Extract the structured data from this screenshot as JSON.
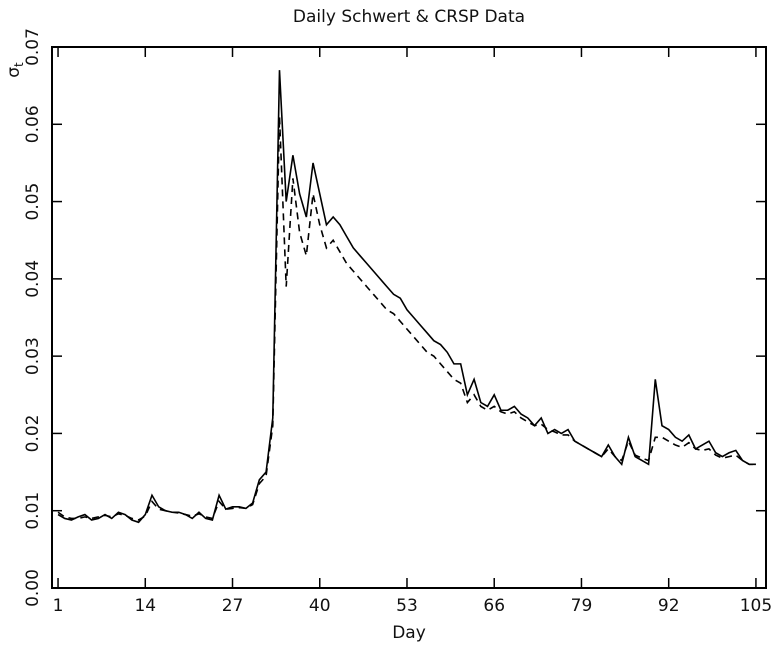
{
  "chart_data": {
    "type": "line",
    "title": "Daily Schwert & CRSP Data",
    "xlabel": "Day",
    "ylabel": "σ",
    "ylabel_subscript": "t",
    "x": [
      1,
      2,
      3,
      4,
      5,
      6,
      7,
      8,
      9,
      10,
      11,
      12,
      13,
      14,
      15,
      16,
      17,
      18,
      19,
      20,
      21,
      22,
      23,
      24,
      25,
      26,
      27,
      28,
      29,
      30,
      31,
      32,
      33,
      34,
      35,
      36,
      37,
      38,
      39,
      40,
      41,
      42,
      43,
      44,
      45,
      46,
      47,
      48,
      49,
      50,
      51,
      52,
      53,
      54,
      55,
      56,
      57,
      58,
      59,
      60,
      61,
      62,
      63,
      64,
      65,
      66,
      67,
      68,
      69,
      70,
      71,
      72,
      73,
      74,
      75,
      76,
      77,
      78,
      79,
      80,
      81,
      82,
      83,
      84,
      85,
      86,
      87,
      88,
      89,
      90,
      91,
      92,
      93,
      94,
      95,
      96,
      97,
      98,
      99,
      100,
      101,
      102,
      103,
      104,
      105
    ],
    "series": [
      {
        "color": "#000000",
        "style": "solid",
        "values": [
          0.0095,
          0.009,
          0.0088,
          0.0092,
          0.0095,
          0.0088,
          0.009,
          0.0095,
          0.009,
          0.0098,
          0.0095,
          0.0088,
          0.0085,
          0.0095,
          0.012,
          0.0105,
          0.01,
          0.0098,
          0.0098,
          0.0095,
          0.009,
          0.0098,
          0.009,
          0.0088,
          0.012,
          0.0102,
          0.0105,
          0.0105,
          0.0103,
          0.011,
          0.014,
          0.015,
          0.022,
          0.067,
          0.05,
          0.056,
          0.051,
          0.048,
          0.055,
          0.051,
          0.047,
          0.048,
          0.047,
          0.0455,
          0.044,
          0.043,
          0.042,
          0.041,
          0.04,
          0.039,
          0.038,
          0.0375,
          0.036,
          0.035,
          0.034,
          0.033,
          0.032,
          0.0315,
          0.0305,
          0.029,
          0.029,
          0.025,
          0.027,
          0.024,
          0.0235,
          0.025,
          0.023,
          0.023,
          0.0235,
          0.0225,
          0.022,
          0.021,
          0.022,
          0.02,
          0.0205,
          0.02,
          0.0205,
          0.019,
          0.0185,
          0.018,
          0.0175,
          0.017,
          0.0185,
          0.017,
          0.016,
          0.0195,
          0.017,
          0.0165,
          0.016,
          0.027,
          0.021,
          0.0205,
          0.0195,
          0.019,
          0.0198,
          0.018,
          0.0185,
          0.019,
          0.0175,
          0.017,
          0.0175,
          0.0178,
          0.0165,
          0.016,
          0.016
        ]
      },
      {
        "color": "#000000",
        "style": "dashed",
        "values": [
          0.0098,
          0.0092,
          0.009,
          0.009,
          0.0092,
          0.009,
          0.0092,
          0.0094,
          0.0092,
          0.0096,
          0.0094,
          0.009,
          0.0088,
          0.0093,
          0.0112,
          0.0102,
          0.01,
          0.0098,
          0.0097,
          0.0095,
          0.0093,
          0.0096,
          0.0092,
          0.009,
          0.0112,
          0.0102,
          0.0103,
          0.0104,
          0.0103,
          0.0108,
          0.0135,
          0.0145,
          0.021,
          0.061,
          0.039,
          0.053,
          0.046,
          0.043,
          0.051,
          0.047,
          0.044,
          0.045,
          0.0435,
          0.042,
          0.041,
          0.04,
          0.039,
          0.038,
          0.037,
          0.036,
          0.0355,
          0.0345,
          0.0335,
          0.0325,
          0.0315,
          0.0305,
          0.03,
          0.029,
          0.028,
          0.027,
          0.0265,
          0.024,
          0.025,
          0.0235,
          0.023,
          0.0235,
          0.0228,
          0.0225,
          0.0228,
          0.022,
          0.0215,
          0.021,
          0.0212,
          0.0205,
          0.0202,
          0.0198,
          0.0198,
          0.019,
          0.0185,
          0.018,
          0.0175,
          0.017,
          0.018,
          0.017,
          0.0165,
          0.019,
          0.0172,
          0.0168,
          0.0165,
          0.0195,
          0.0195,
          0.019,
          0.0185,
          0.0182,
          0.0188,
          0.018,
          0.0178,
          0.018,
          0.0172,
          0.0168,
          0.017,
          0.0172,
          0.0165,
          0.016,
          0.016
        ]
      }
    ],
    "xlim": [
      0.1,
      106.5
    ],
    "xticks": [
      1,
      14,
      27,
      40,
      53,
      66,
      79,
      92,
      105
    ],
    "ylim": [
      0,
      0.07
    ],
    "yticks": [
      {
        "value": 0,
        "label": "0.00"
      },
      {
        "value": 0.01,
        "label": "0.01"
      },
      {
        "value": 0.02,
        "label": "0.02"
      },
      {
        "value": 0.03,
        "label": "0.03"
      },
      {
        "value": 0.04,
        "label": "0.04"
      },
      {
        "value": 0.05,
        "label": "0.05"
      },
      {
        "value": 0.06,
        "label": "0.06"
      },
      {
        "value": 0.07,
        "label": "0.07"
      }
    ],
    "grid": false
  }
}
